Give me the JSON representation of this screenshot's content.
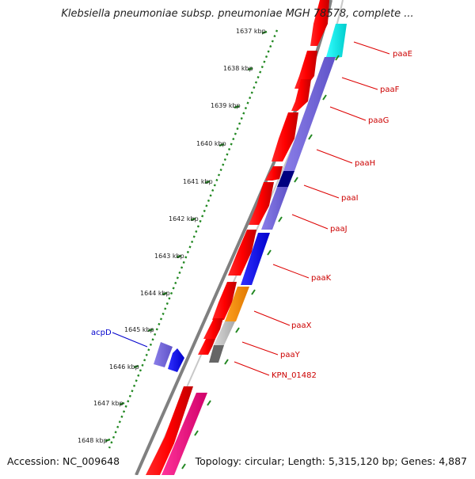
{
  "title": "Klebsiella pneumoniae subsp. pneumoniae MGH 78578, complete ...",
  "footer": {
    "accession": "Accession: NC_009648",
    "topology": "Topology: circular; Length: 5,315,120 bp; Genes: 4,887"
  },
  "ticks": [
    "1637 kbp",
    "1638 kbp",
    "1639 kbp",
    "1640 kbp",
    "1641 kbp",
    "1642 kbp",
    "1643 kbp",
    "1644 kbp",
    "1645 kbp",
    "1646 kbp",
    "1647 kbp",
    "1648 kbp"
  ],
  "genes": [
    {
      "label": "paaE",
      "color": "#cc0000"
    },
    {
      "label": "paaF",
      "color": "#cc0000"
    },
    {
      "label": "paaG",
      "color": "#cc0000"
    },
    {
      "label": "paaH",
      "color": "#cc0000"
    },
    {
      "label": "paaI",
      "color": "#cc0000"
    },
    {
      "label": "paaJ",
      "color": "#cc0000"
    },
    {
      "label": "paaK",
      "color": "#cc0000"
    },
    {
      "label": "paaX",
      "color": "#cc0000"
    },
    {
      "label": "paaY",
      "color": "#cc0000"
    },
    {
      "label": "KPN_01482",
      "color": "#cc0000"
    },
    {
      "label": "acpD",
      "color": "#0000cc"
    }
  ],
  "colors": {
    "backbone": "#888888",
    "forward_cds": "#ff0000",
    "reverse_cds": "#ff0000",
    "tick_dots": "#228822"
  }
}
